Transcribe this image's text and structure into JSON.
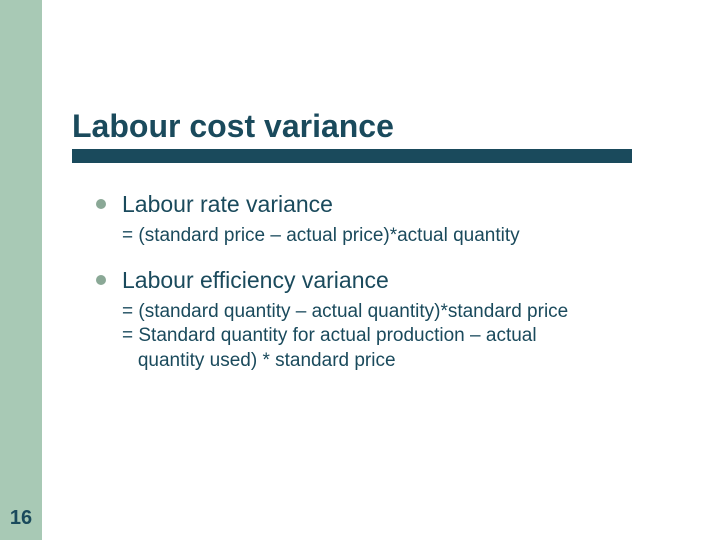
{
  "colors": {
    "sidebar_bg": "#a8c9b5",
    "title_text": "#1a4a5c",
    "underline_bg": "#1a4a5c",
    "bullet_dot": "#8aa896",
    "bullet_label": "#1a4a5c",
    "formula_text": "#1a4a5c",
    "page_number": "#1a4a5c"
  },
  "page_number": "16",
  "title": "Labour cost variance",
  "bullets": [
    {
      "label": "Labour rate variance",
      "formula_lines": [
        "= (standard price – actual price)*actual quantity"
      ]
    },
    {
      "label": "Labour efficiency variance",
      "formula_lines": [
        "= (standard quantity – actual quantity)*standard price",
        "= Standard quantity for actual production – actual",
        "   quantity used) * standard price"
      ]
    }
  ]
}
